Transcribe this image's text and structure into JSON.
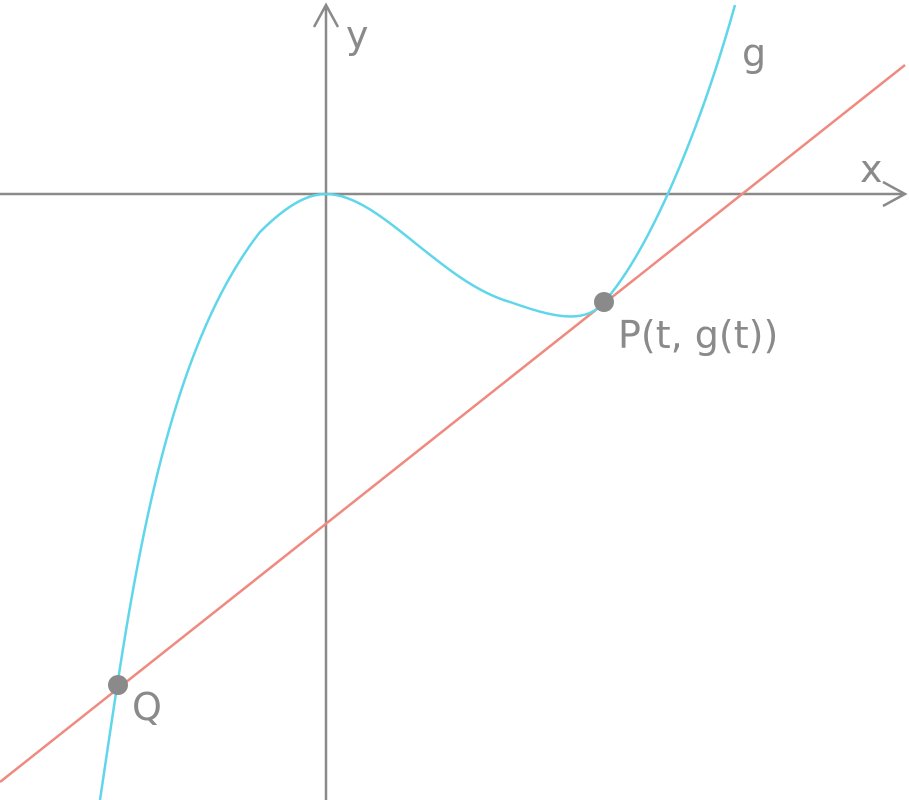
{
  "axes": {
    "x_label": "x",
    "y_label": "y"
  },
  "curve": {
    "label": "g"
  },
  "points": [
    {
      "label": "P(t, g(t))"
    },
    {
      "label": "Q"
    }
  ]
}
